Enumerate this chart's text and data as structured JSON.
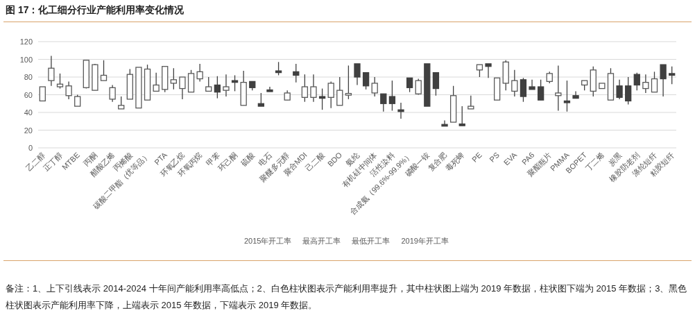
{
  "chart_data": {
    "type": "candlestick",
    "title": "图 17：化工细分行业产能利用率变化情况",
    "categories": [
      "乙二醇",
      null,
      "正丁醇",
      null,
      "MTBE",
      null,
      "丙酮",
      null,
      "醋酸乙烯",
      null,
      "丙烯酸",
      null,
      "碳酸二甲酯（优等品）",
      null,
      "PTA",
      null,
      "环氧乙烷",
      null,
      "环氧丙烷",
      null,
      "甲苯",
      null,
      "环己酮",
      null,
      "硫酸",
      null,
      "电石",
      null,
      "聚醚多元醇",
      null,
      "聚合MDI",
      null,
      "己二酸",
      null,
      "BDO",
      null,
      "氨纶",
      null,
      "有机硅中间体",
      null,
      "活性染料",
      null,
      "合成氨（99.6%-99.9%）",
      null,
      "磷酸一铵",
      null,
      "复合肥",
      null,
      "毒死蜱",
      null,
      "PE",
      null,
      "PS",
      null,
      "EVA",
      null,
      "PA6",
      null,
      "聚酯瓶片",
      null,
      "PMMA",
      null,
      "BOPET",
      null,
      "丁二烯",
      null,
      "炭黑",
      null,
      "橡胶防老剂",
      null,
      "涤纶短纤",
      null,
      "粘胶短纤"
    ],
    "ohlc": [
      [
        53,
        69,
        53,
        69
      ],
      [
        76,
        104,
        70,
        90
      ],
      [
        69,
        84,
        67,
        72
      ],
      [
        59,
        75,
        55,
        70
      ],
      [
        47,
        60,
        47,
        58
      ],
      [
        68,
        99,
        67,
        99
      ],
      [
        65,
        95,
        65,
        94
      ],
      [
        76,
        99,
        76,
        82
      ],
      [
        55,
        71,
        52,
        68
      ],
      [
        44,
        58,
        44,
        48
      ],
      [
        55,
        89,
        55,
        83
      ],
      [
        45,
        91,
        45,
        91
      ],
      [
        54,
        94,
        54,
        89
      ],
      [
        64,
        85,
        64,
        71
      ],
      [
        66,
        92,
        63,
        92
      ],
      [
        73,
        90,
        66,
        77
      ],
      [
        67,
        80,
        55,
        80
      ],
      [
        63,
        88,
        63,
        84
      ],
      [
        78,
        95,
        75,
        86
      ],
      [
        64,
        80,
        64,
        69
      ],
      [
        71,
        81,
        56,
        63
      ],
      [
        65,
        83,
        58,
        69
      ],
      [
        76,
        82,
        64,
        74
      ],
      [
        48,
        87,
        48,
        74
      ],
      [
        75,
        75,
        65,
        68
      ],
      [
        50,
        62,
        47,
        47
      ],
      [
        65,
        69,
        64,
        64
      ],
      [
        86,
        97,
        82,
        86
      ],
      [
        54,
        65,
        54,
        62
      ],
      [
        86,
        95,
        74,
        82
      ],
      [
        57,
        83,
        52,
        69
      ],
      [
        57,
        83,
        52,
        69
      ],
      [
        57,
        67,
        43,
        57
      ],
      [
        57,
        75,
        45,
        73
      ],
      [
        48,
        80,
        48,
        65
      ],
      [
        60,
        93,
        55,
        61
      ],
      [
        95,
        95,
        71,
        80
      ],
      [
        85,
        85,
        66,
        70
      ],
      [
        62,
        80,
        58,
        73
      ],
      [
        61,
        61,
        41,
        50
      ],
      [
        58,
        76,
        42,
        50
      ],
      [
        42,
        51,
        33,
        42
      ],
      [
        79,
        79,
        63,
        68
      ],
      [
        61,
        78,
        60,
        76
      ],
      [
        95,
        95,
        47,
        47
      ],
      [
        85,
        85,
        59,
        67
      ],
      [
        26,
        31,
        25,
        25
      ],
      [
        29,
        70,
        29,
        59
      ],
      [
        27,
        47,
        25,
        25
      ],
      [
        44,
        59,
        44,
        47
      ],
      [
        88,
        94,
        80,
        94
      ],
      [
        95,
        95,
        79,
        92
      ],
      [
        54,
        79,
        54,
        79
      ],
      [
        73,
        99,
        65,
        97
      ],
      [
        64,
        88,
        58,
        76
      ],
      [
        77,
        79,
        52,
        58
      ],
      [
        69,
        77,
        66,
        66
      ],
      [
        69,
        77,
        54,
        54
      ],
      [
        75,
        86,
        73,
        84
      ],
      [
        59,
        93,
        42,
        62
      ],
      [
        53,
        76,
        41,
        51
      ],
      [
        59,
        64,
        56,
        56
      ],
      [
        71,
        76,
        65,
        76
      ],
      [
        64,
        92,
        58,
        88
      ],
      [
        67,
        73,
        67,
        73
      ],
      [
        54,
        90,
        54,
        84
      ],
      [
        70,
        77,
        55,
        57
      ],
      [
        70,
        80,
        49,
        53
      ],
      [
        83,
        85,
        65,
        71
      ],
      [
        67,
        83,
        62,
        74
      ],
      [
        63,
        86,
        63,
        78
      ],
      [
        94,
        94,
        58,
        78
      ],
      [
        83,
        92,
        72,
        83
      ]
    ],
    "colors": [
      "#ffffff",
      "#ffffff",
      "#ffffff",
      "#ffffff",
      "#ffffff",
      "#ffffff",
      "#ffffff",
      "#ffffff",
      "#ffffff",
      "#ffffff",
      "#ffffff",
      "#ffffff",
      "#ffffff",
      "#ffffff",
      "#ffffff",
      "#ffffff",
      "#ffffff",
      "#ffffff",
      "#ffffff",
      "#ffffff",
      "#404040",
      "#ffffff",
      "#404040",
      "#ffffff",
      "#404040",
      "#404040",
      "#404040",
      "#404040",
      "#ffffff",
      "#404040",
      "#ffffff",
      "#ffffff",
      "#404040",
      "#ffffff",
      "#ffffff",
      "#ffffff",
      "#404040",
      "#404040",
      "#ffffff",
      "#404040",
      "#404040",
      "#404040",
      "#404040",
      "#ffffff",
      "#404040",
      "#404040",
      "#404040",
      "#ffffff",
      "#404040",
      "#ffffff",
      "#ffffff",
      "#404040",
      "#ffffff",
      "#ffffff",
      "#ffffff",
      "#404040",
      "#404040",
      "#404040",
      "#ffffff",
      "#ffffff",
      "#404040",
      "#404040",
      "#ffffff",
      "#ffffff",
      "#ffffff",
      "#ffffff",
      "#404040",
      "#404040",
      "#404040",
      "#ffffff",
      "#ffffff",
      "#404040",
      "#404040"
    ],
    "ylim": [
      0,
      120
    ],
    "yticks": [
      0,
      20,
      40,
      60,
      80,
      100,
      120
    ],
    "grid": "y",
    "annotations": [
      "2015年开工率",
      "最高开工率",
      "最低开工率",
      "2019年开工率",
      "备注：1、上下引线表示 2014-2024 十年间产能利用率高低点；2、白色柱状图表示产能利用率提升，其中柱状图上端为 2019 年数据，柱状图下端为 2015 年数据；3、黑色柱状图表示产能利用率下降，上端表示 2015 年数据，下端表示 2019 年数据。"
    ]
  }
}
